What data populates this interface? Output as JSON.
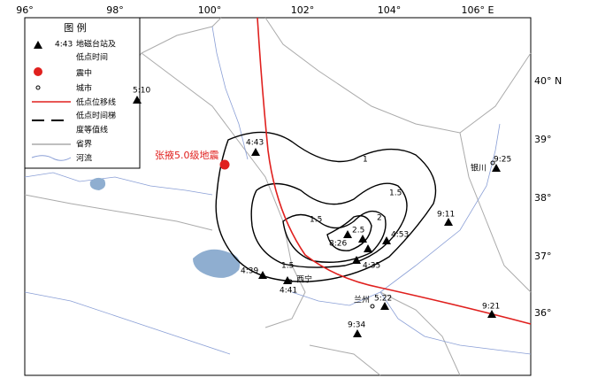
{
  "axes": {
    "top": [
      "96°",
      "98°",
      "100°",
      "102°",
      "104°",
      "106° E"
    ],
    "right": [
      "40° N",
      "39°",
      "38°",
      "37°",
      "36°"
    ]
  },
  "legend": {
    "title": "图 例",
    "items": [
      {
        "time": "4:43",
        "text": "地磁台站及",
        "text2": "低点时间"
      },
      {
        "text": "震中"
      },
      {
        "text": "城市"
      },
      {
        "text": "低点位移线"
      },
      {
        "text": "低点时间梯",
        "text2": "度等值线"
      },
      {
        "text": "省界"
      },
      {
        "text": "河流"
      }
    ]
  },
  "epicenter": "张掖5.0级地震",
  "stations": [
    "5:10",
    "4:43",
    "9:25",
    "9:11",
    "8:26",
    "4:53",
    "4:35",
    "4:39",
    "4:41",
    "5:22",
    "9:21",
    "9:34"
  ],
  "cities": [
    "银川",
    "西宁",
    "兰州"
  ],
  "contour_labels": [
    "1",
    "1.5",
    "2",
    "2.5",
    "1.5",
    "1.5"
  ]
}
